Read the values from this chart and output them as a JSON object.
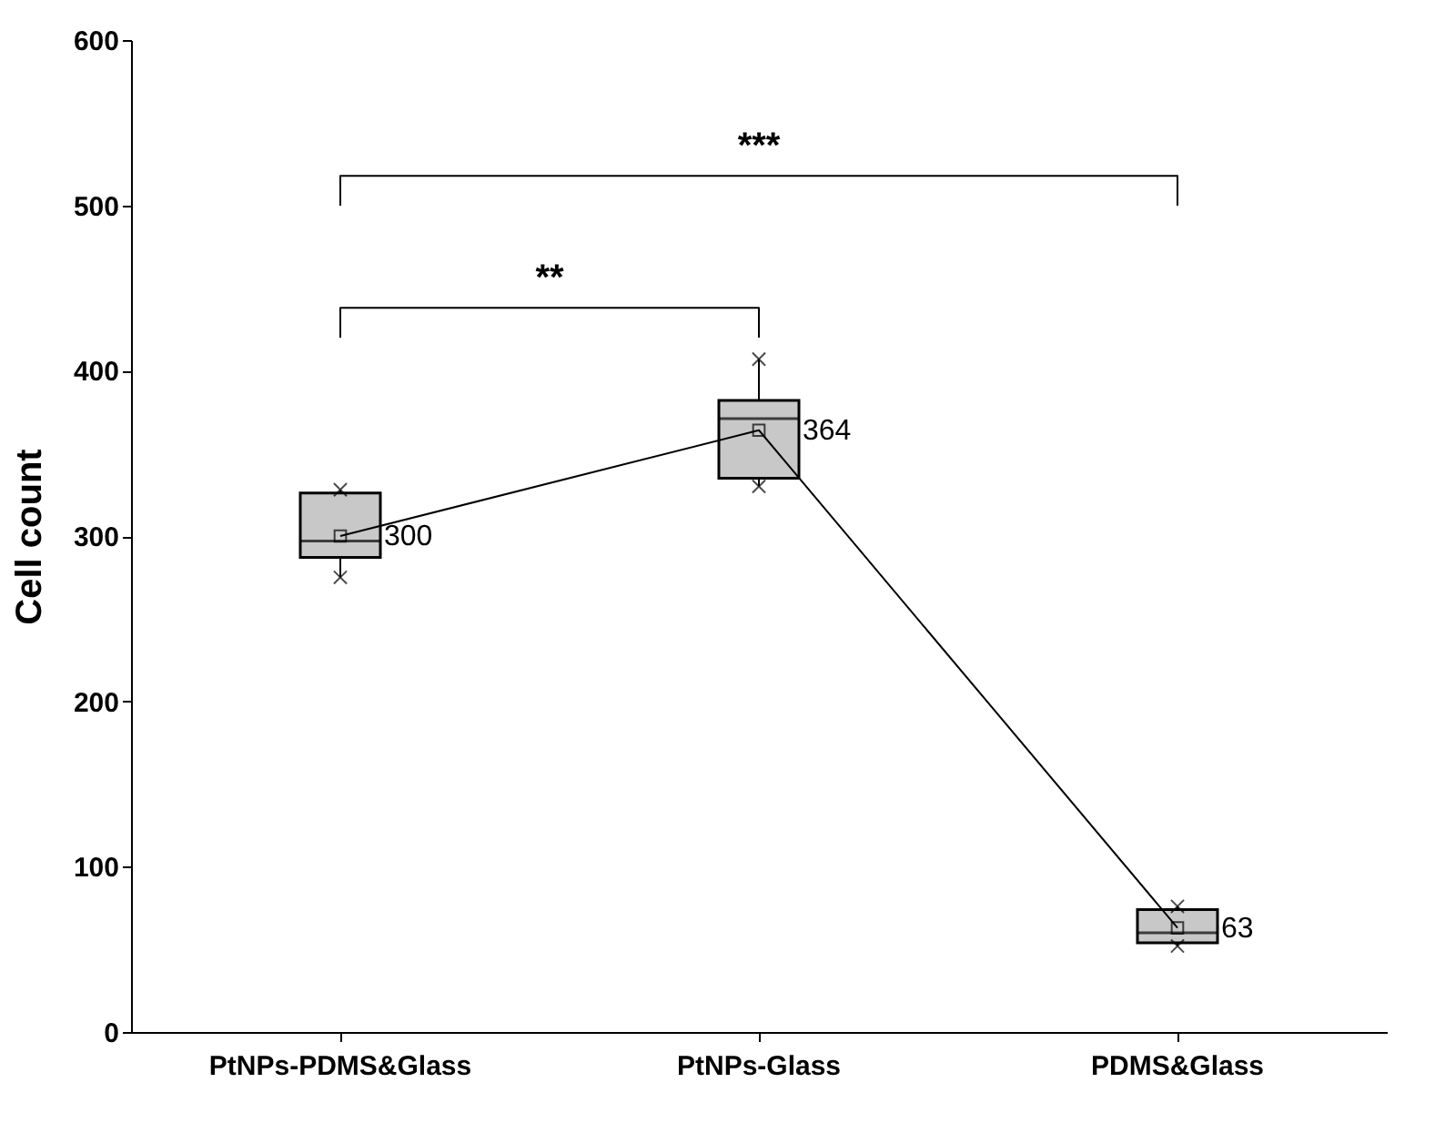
{
  "chart_data": {
    "type": "box",
    "ylabel": "Cell  count",
    "categories": [
      "PtNPs-PDMS&Glass",
      "PtNPs-Glass",
      "PDMS&Glass"
    ],
    "series": [
      {
        "color": "#c8c8c8",
        "boxes": [
          {
            "low": 275,
            "q1": 287,
            "median": 297,
            "q3": 326,
            "high": 328,
            "outliers": [
              275,
              328
            ]
          },
          {
            "low": 330,
            "q1": 335,
            "median": 371,
            "q3": 382,
            "high": 407,
            "outliers": [
              330,
              407
            ]
          },
          {
            "low": 52,
            "q1": 54,
            "median": 60,
            "q3": 74,
            "high": 76,
            "outliers": [
              52,
              76
            ]
          }
        ]
      },
      {
        "type": "line",
        "color": "#000000",
        "values": [
          300,
          364,
          63
        ]
      }
    ],
    "data_labels": true,
    "annotations": [
      "**",
      "***"
    ],
    "ylim": [
      0,
      600
    ],
    "yticks": [
      0,
      100,
      200,
      300,
      400,
      500,
      600
    ],
    "grid": false,
    "marker": "square"
  }
}
